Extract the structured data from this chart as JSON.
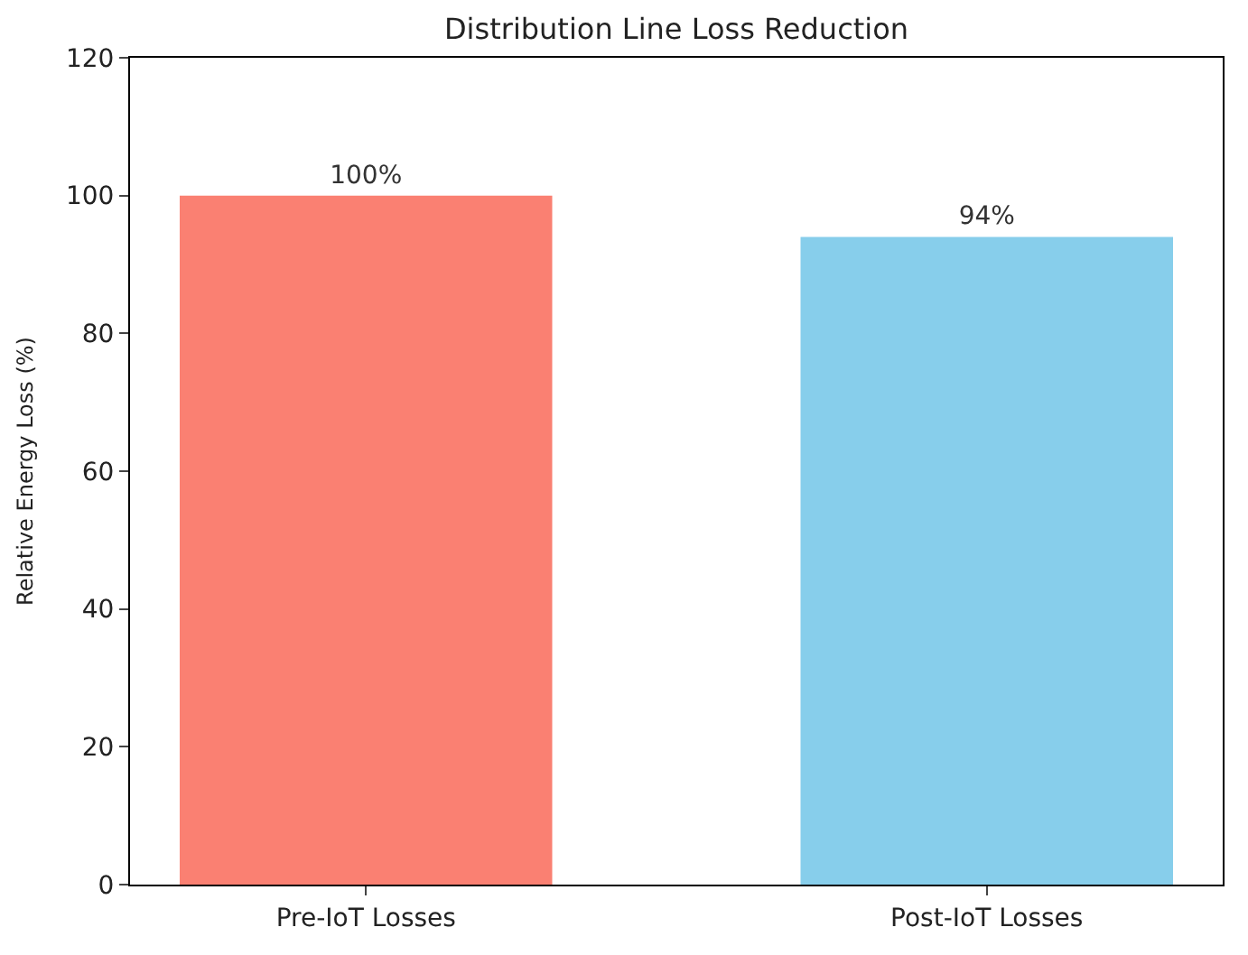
{
  "chart_data": {
    "type": "bar",
    "title": "Distribution Line Loss Reduction",
    "ylabel": "Relative Energy Loss (%)",
    "categories": [
      "Pre-IoT Losses",
      "Post-IoT Losses"
    ],
    "values": [
      100,
      94
    ],
    "colors": [
      "#fa8072",
      "#87ceeb"
    ],
    "value_labels": [
      "100%",
      "94%"
    ],
    "ylim": [
      0,
      120
    ],
    "yticks": [
      0,
      20,
      40,
      60,
      80,
      100,
      120
    ]
  }
}
